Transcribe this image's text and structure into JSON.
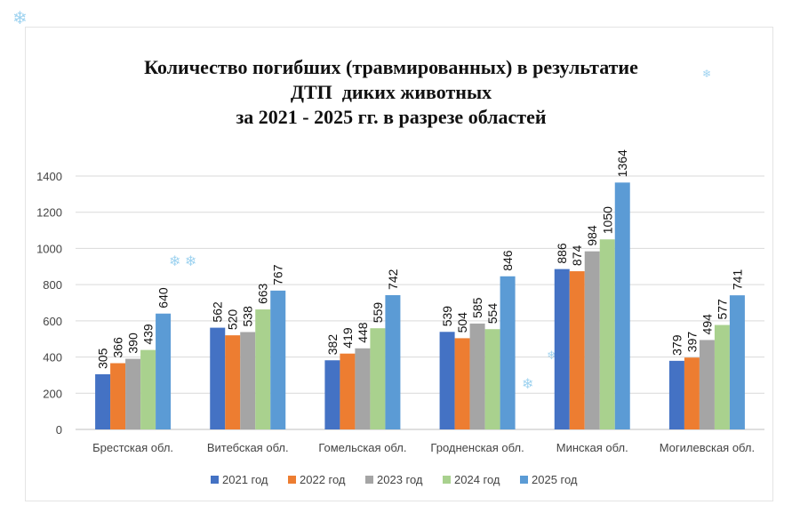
{
  "chart_data": {
    "type": "bar",
    "title_lines": [
      "Количество погибших (травмированных) в результатие",
      "ДТП  диких животных",
      "за 2021 - 2025 гг. в разрезе областей"
    ],
    "categories": [
      "Брестская обл.",
      "Витебская обл.",
      "Гомельская обл.",
      "Гродненская обл.",
      "Минская обл.",
      "Могилевская обл."
    ],
    "series": [
      {
        "name": "2021 год",
        "color": "#4472c4",
        "values": [
          305,
          562,
          382,
          539,
          886,
          379
        ]
      },
      {
        "name": "2022 год",
        "color": "#ed7d31",
        "values": [
          366,
          520,
          419,
          504,
          874,
          397
        ]
      },
      {
        "name": "2023 год",
        "color": "#a5a5a5",
        "values": [
          390,
          538,
          448,
          585,
          984,
          494
        ]
      },
      {
        "name": "2024 год",
        "color": "#a9d18e",
        "values": [
          439,
          663,
          559,
          554,
          1050,
          577
        ]
      },
      {
        "name": "2025 год",
        "color": "#5b9bd5",
        "values": [
          640,
          767,
          742,
          846,
          1364,
          741
        ]
      }
    ],
    "ylim": [
      0,
      1400
    ],
    "yticks": [
      0,
      200,
      400,
      600,
      800,
      1000,
      1200,
      1400
    ],
    "grid": true,
    "legend": "bottom",
    "xlabel": "",
    "ylabel": ""
  }
}
